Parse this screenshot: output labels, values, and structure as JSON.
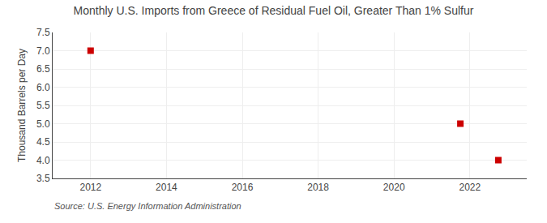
{
  "chart_data": {
    "type": "scatter",
    "title": "Monthly U.S. Imports from Greece of Residual Fuel Oil, Greater Than 1% Sulfur",
    "ylabel": "Thousand Barrels per Day",
    "source": "Source: U.S. Energy Information Administration",
    "x": [
      2012.0,
      2021.75,
      2022.75
    ],
    "values": [
      7.0,
      5.0,
      4.0
    ],
    "color": "#CC0000",
    "marker": "square",
    "xlim": [
      2011.0,
      2023.5
    ],
    "ylim": [
      3.5,
      7.5
    ],
    "xticks": [
      2012,
      2014,
      2016,
      2018,
      2020,
      2022
    ],
    "yticks": [
      3.5,
      {
        "value": 4.0,
        "label": "4.0"
      },
      4.5,
      {
        "value": 5.0,
        "label": "5.0"
      },
      5.5,
      {
        "value": 6.0,
        "label": "6.0"
      },
      6.5,
      {
        "value": 7.0,
        "label": "7.0"
      },
      7.5
    ],
    "grid": true
  }
}
